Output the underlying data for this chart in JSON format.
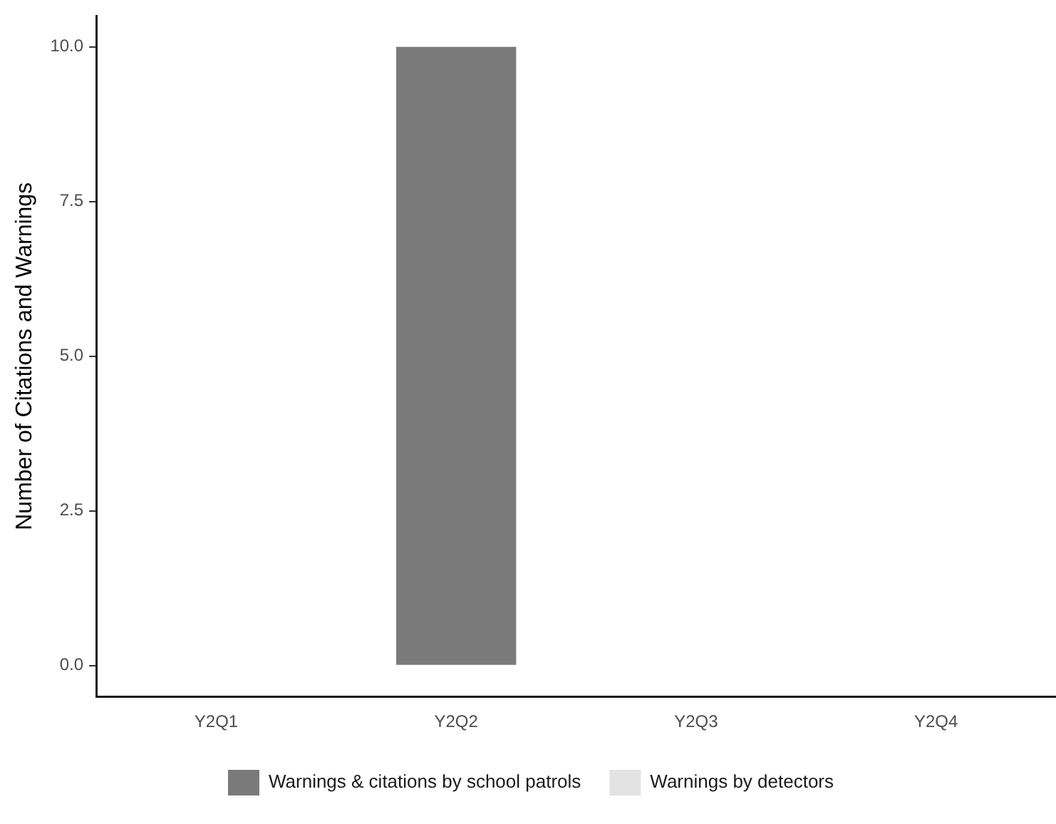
{
  "chart_data": {
    "type": "bar",
    "stacked": true,
    "ylabel": "Number of Citations and Warnings",
    "categories": [
      "Y2Q1",
      "Y2Q2",
      "Y2Q3",
      "Y2Q4"
    ],
    "series": [
      {
        "name": "Warnings & citations by school patrols",
        "color": "#7a7a7a",
        "values": [
          0,
          10,
          0,
          0
        ]
      },
      {
        "name": "Warnings by detectors",
        "color": "#e3e3e3",
        "values": [
          0,
          0,
          0,
          0
        ]
      }
    ],
    "ylim": [
      -0.5,
      10.5
    ],
    "yticks": [
      {
        "value": 0,
        "label": "0.0"
      },
      {
        "value": 2.5,
        "label": "2.5"
      },
      {
        "value": 5,
        "label": "5.0"
      },
      {
        "value": 7.5,
        "label": "7.5"
      },
      {
        "value": 10,
        "label": "10.0"
      }
    ],
    "grid": false,
    "legend": "bottom"
  }
}
